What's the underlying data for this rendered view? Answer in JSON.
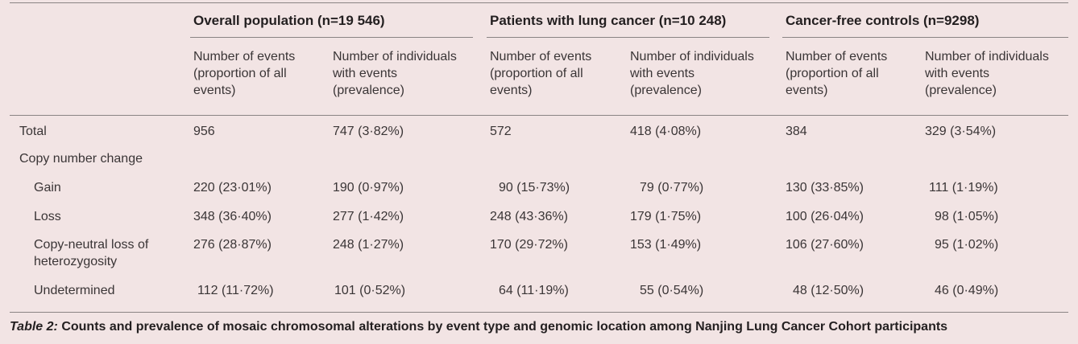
{
  "groups": [
    {
      "title": "Overall population (n=19 546)"
    },
    {
      "title": "Patients with lung cancer (n=10 248)"
    },
    {
      "title": "Cancer-free controls (n=9298)"
    }
  ],
  "subheaders": {
    "events": "Number of events (proportion of all events)",
    "individuals": "Number of individuals with events (prevalence)"
  },
  "rows": [
    {
      "label": "Total",
      "cells": [
        "956",
        "747 (3·82%)",
        "572",
        "418 (4·08%)",
        "384",
        "329 (3·54%)"
      ]
    },
    {
      "label": "Copy number change",
      "cells": [
        "",
        "",
        "",
        "",
        "",
        ""
      ]
    },
    {
      "label": "Gain",
      "cells": [
        "220 (23·01%)",
        "190 (0·97%)",
        "90 (15·73%)",
        "79 (0·77%)",
        "130 (33·85%)",
        "111 (1·19%)"
      ]
    },
    {
      "label": "Loss",
      "cells": [
        "348 (36·40%)",
        "277 (1·42%)",
        "248 (43·36%)",
        "179 (1·75%)",
        "100 (26·04%)",
        "98 (1·05%)"
      ]
    },
    {
      "label": "Copy-neutral loss of heterozygosity",
      "cells": [
        "276 (28·87%)",
        "248 (1·27%)",
        "170 (29·72%)",
        "153 (1·49%)",
        "106 (27·60%)",
        "95 (1·02%)"
      ]
    },
    {
      "label": "Undetermined",
      "cells": [
        "112 (11·72%)",
        "101 (0·52%)",
        "64 (11·19%)",
        "55 (0·54%)",
        "48 (12·50%)",
        "46 (0·49%)"
      ]
    }
  ],
  "caption": {
    "label": "Table 2:",
    "text": "Counts and prevalence of mosaic chromosomal alterations by event type and genomic location among Nanjing Lung Cancer Cohort participants"
  }
}
